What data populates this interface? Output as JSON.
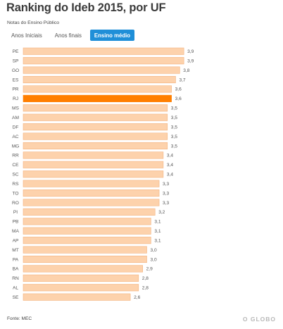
{
  "title": "Ranking do Ideb 2015, por UF",
  "subtitle": "Notas do Ensino Público",
  "tabs": [
    {
      "label": "Anos Iniciais",
      "active": false
    },
    {
      "label": "Anos finais",
      "active": false
    },
    {
      "label": "Ensino médio",
      "active": true
    }
  ],
  "chart_data": {
    "type": "bar",
    "orientation": "horizontal",
    "categories": [
      "PE",
      "SP",
      "GO",
      "ES",
      "PR",
      "RJ",
      "MS",
      "AM",
      "DF",
      "AC",
      "MG",
      "RR",
      "CE",
      "SC",
      "RS",
      "TO",
      "RO",
      "PI",
      "PB",
      "MA",
      "AP",
      "MT",
      "PA",
      "BA",
      "RN",
      "AL",
      "SE"
    ],
    "values": [
      3.9,
      3.9,
      3.8,
      3.7,
      3.6,
      3.6,
      3.5,
      3.5,
      3.5,
      3.5,
      3.5,
      3.4,
      3.4,
      3.4,
      3.3,
      3.3,
      3.3,
      3.2,
      3.1,
      3.1,
      3.1,
      3.0,
      3.0,
      2.9,
      2.8,
      2.8,
      2.6
    ],
    "value_labels": [
      "3,9",
      "3,9",
      "3,8",
      "3,7",
      "3,6",
      "3,6",
      "3,5",
      "3,5",
      "3,5",
      "3,5",
      "3,5",
      "3,4",
      "3,4",
      "3,4",
      "3,3",
      "3,3",
      "3,3",
      "3,2",
      "3,1",
      "3,1",
      "3,1",
      "3,0",
      "3,0",
      "2,9",
      "2,8",
      "2,8",
      "2,6"
    ],
    "highlight": "RJ",
    "bar_color": "#fdd2ac",
    "bar_border_color": "#f3b27e",
    "highlight_color": "#ff7f00"
  },
  "source": "Fonte: MEC",
  "logo_text": "O GLOBO"
}
